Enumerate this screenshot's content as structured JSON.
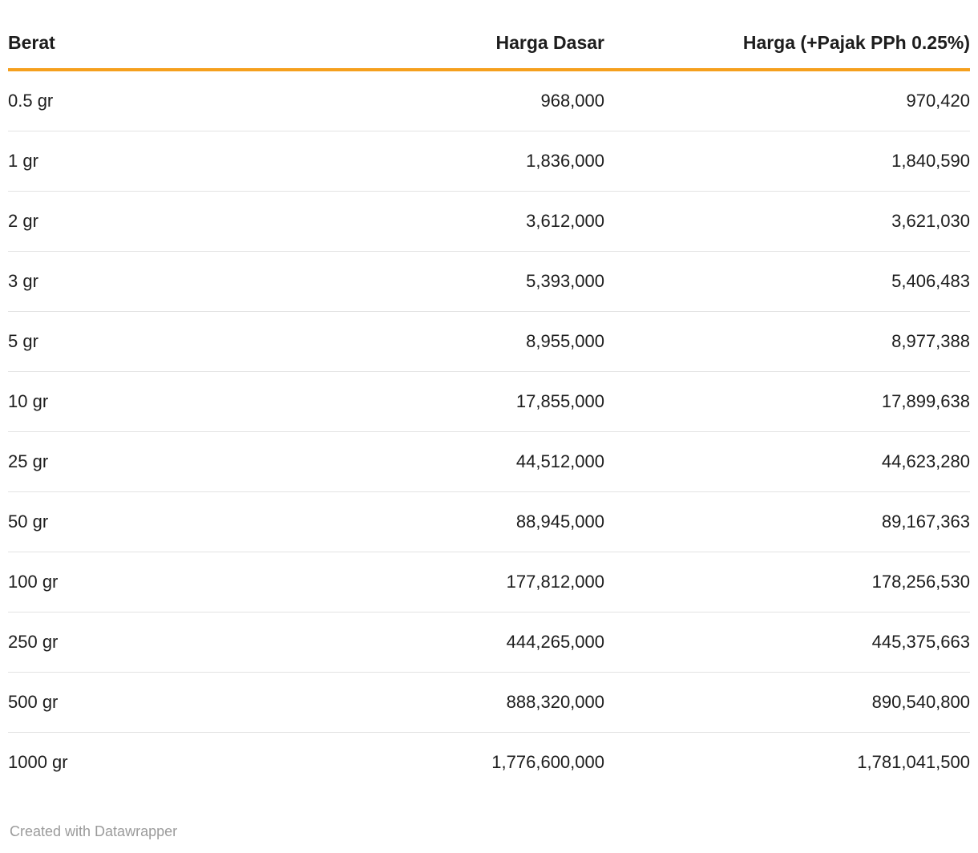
{
  "chart_data": {
    "type": "table",
    "columns": [
      "Berat",
      "Harga Dasar",
      "Harga (+Pajak PPh 0.25%)"
    ],
    "rows": [
      [
        "0.5 gr",
        "968,000",
        "970,420"
      ],
      [
        "1 gr",
        "1,836,000",
        "1,840,590"
      ],
      [
        "2 gr",
        "3,612,000",
        "3,621,030"
      ],
      [
        "3 gr",
        "5,393,000",
        "5,406,483"
      ],
      [
        "5 gr",
        "8,955,000",
        "8,977,388"
      ],
      [
        "10 gr",
        "17,855,000",
        "17,899,638"
      ],
      [
        "25 gr",
        "44,512,000",
        "44,623,280"
      ],
      [
        "50 gr",
        "88,945,000",
        "89,167,363"
      ],
      [
        "100 gr",
        "177,812,000",
        "178,256,530"
      ],
      [
        "250 gr",
        "444,265,000",
        "445,375,663"
      ],
      [
        "500 gr",
        "888,320,000",
        "890,540,800"
      ],
      [
        "1000 gr",
        "1,776,600,000",
        "1,781,041,500"
      ]
    ],
    "title": "",
    "legend": "none",
    "grid": "horizontal-row-dividers"
  },
  "footer": {
    "attribution": "Created with Datawrapper"
  },
  "colors": {
    "accent": "#F5A01E",
    "row_divider": "#E3E3E3",
    "text": "#1D1D1D",
    "footer_text": "#9B9B9B",
    "background": "#FFFFFF"
  }
}
